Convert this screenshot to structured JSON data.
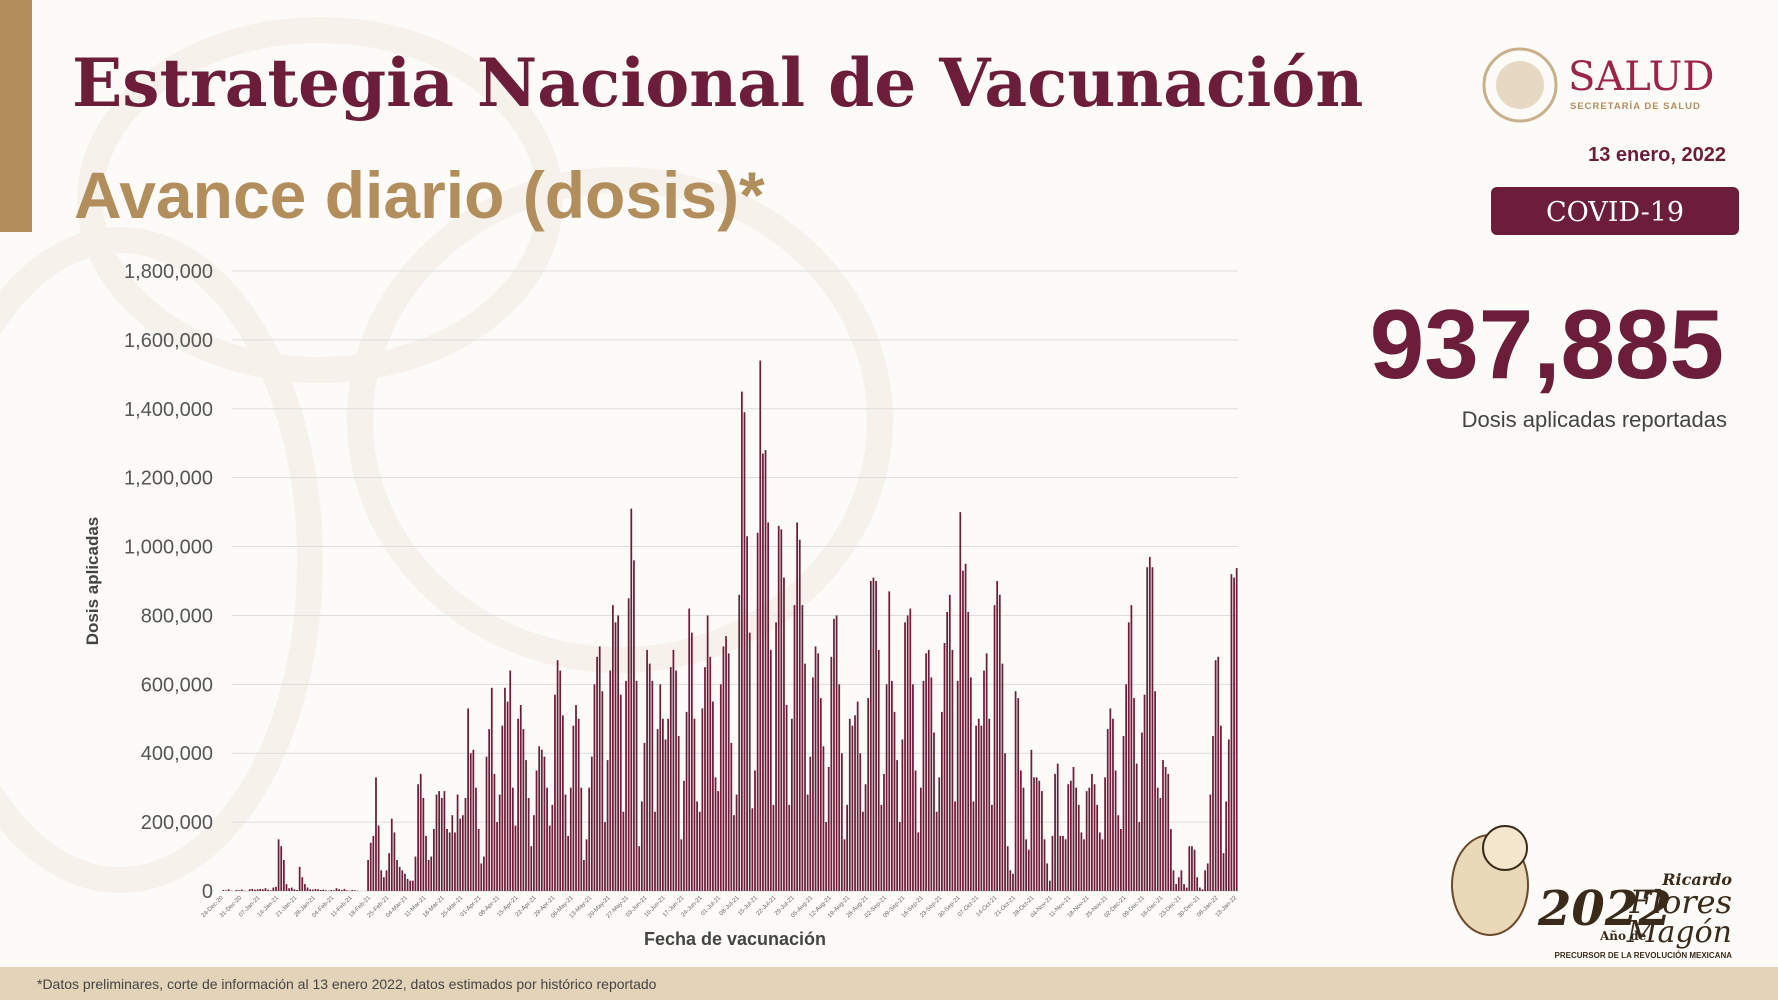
{
  "header": {
    "title": "Estrategia Nacional de Vacunación",
    "subtitle": "Avance diario (dosis)*",
    "date": "13 enero, 2022",
    "badge": "COVID-19"
  },
  "logo": {
    "agency": "SALUD",
    "agency_subtitle": "SECRETARÍA DE SALUD"
  },
  "headline": {
    "value": "937,885",
    "caption": "Dosis aplicadas reportadas"
  },
  "commemorative": {
    "year": "2022",
    "text": "Año de",
    "name_first": "Ricardo",
    "name_second": "Flores",
    "name_third": "Magón",
    "tagline": "PRECURSOR DE LA REVOLUCIÓN MEXICANA"
  },
  "footnote": "*Datos preliminares, corte de información al 13 enero 2022, datos estimados por histórico reportado",
  "chart_data": {
    "type": "bar",
    "x_label": "Fecha de vacunación",
    "y_label": "Dosis aplicadas",
    "color": "#6b1d3a",
    "grid": true,
    "ylim": [
      0,
      1800000
    ],
    "yticks": [
      0,
      {
        "value": 200000,
        "label": "200,000"
      },
      {
        "value": 400000,
        "label": "400,000"
      },
      {
        "value": 600000,
        "label": "600,000"
      },
      {
        "value": 800000,
        "label": "800,000"
      },
      {
        "value": 1000000,
        "label": "1,000,000"
      },
      {
        "value": 1200000,
        "label": "1,200,000"
      },
      {
        "value": 1400000,
        "label": "1,400,000"
      },
      {
        "value": 1600000,
        "label": "1,600,000"
      },
      {
        "value": 1800000,
        "label": "1,800,000"
      }
    ],
    "categories": [
      "24-Dec-20",
      null,
      null,
      null,
      null,
      null,
      null,
      "31-Dec-20",
      null,
      null,
      null,
      null,
      null,
      null,
      "07-Jan-21",
      null,
      null,
      null,
      null,
      null,
      null,
      "14-Jan-21",
      null,
      null,
      null,
      null,
      null,
      null,
      "21-Jan-21",
      null,
      null,
      null,
      null,
      null,
      null,
      "28-Jan-21",
      null,
      null,
      null,
      null,
      null,
      null,
      "04-Feb-21",
      null,
      null,
      null,
      null,
      null,
      null,
      "11-Feb-21",
      null,
      null,
      null,
      null,
      null,
      null,
      "18-Feb-21",
      null,
      null,
      null,
      null,
      null,
      null,
      "25-Feb-21",
      null,
      null,
      null,
      null,
      null,
      null,
      "04-Mar-21",
      null,
      null,
      null,
      null,
      null,
      null,
      "11-Mar-21",
      null,
      null,
      null,
      null,
      null,
      null,
      "18-Mar-21",
      null,
      null,
      null,
      null,
      null,
      null,
      "25-Mar-21",
      null,
      null,
      null,
      null,
      null,
      null,
      "01-Apr-21",
      null,
      null,
      null,
      null,
      null,
      null,
      "08-Apr-21",
      null,
      null,
      null,
      null,
      null,
      null,
      "15-Apr-21",
      null,
      null,
      null,
      null,
      null,
      null,
      "22-Apr-21",
      null,
      null,
      null,
      null,
      null,
      null,
      "29-Apr-21",
      null,
      null,
      null,
      null,
      null,
      null,
      "06-May-21",
      null,
      null,
      null,
      null,
      null,
      null,
      "13-May-21",
      null,
      null,
      null,
      null,
      null,
      null,
      "20-May-21",
      null,
      null,
      null,
      null,
      null,
      null,
      "27-May-21",
      null,
      null,
      null,
      null,
      null,
      null,
      "03-Jun-21",
      null,
      null,
      null,
      null,
      null,
      null,
      "10-Jun-21",
      null,
      null,
      null,
      null,
      null,
      null,
      "17-Jun-21",
      null,
      null,
      null,
      null,
      null,
      null,
      "24-Jun-21",
      null,
      null,
      null,
      null,
      null,
      null,
      "01-Jul-21",
      null,
      null,
      null,
      null,
      null,
      null,
      "08-Jul-21",
      null,
      null,
      null,
      null,
      null,
      null,
      "15-Jul-21",
      null,
      null,
      null,
      null,
      null,
      null,
      "22-Jul-21",
      null,
      null,
      null,
      null,
      null,
      null,
      "29-Jul-21",
      null,
      null,
      null,
      null,
      null,
      null,
      "05-Aug-21",
      null,
      null,
      null,
      null,
      null,
      null,
      "12-Aug-21",
      null,
      null,
      null,
      null,
      null,
      null,
      "19-Aug-21",
      null,
      null,
      null,
      null,
      null,
      null,
      "26-Aug-21",
      null,
      null,
      null,
      null,
      null,
      null,
      "02-Sep-21",
      null,
      null,
      null,
      null,
      null,
      null,
      "09-Sep-21",
      null,
      null,
      null,
      null,
      null,
      null,
      "16-Sep-21",
      null,
      null,
      null,
      null,
      null,
      null,
      "23-Sep-21",
      null,
      null,
      null,
      null,
      null,
      null,
      "30-Sep-21",
      null,
      null,
      null,
      null,
      null,
      null,
      "07-Oct-21",
      null,
      null,
      null,
      null,
      null,
      null,
      "14-Oct-21",
      null,
      null,
      null,
      null,
      null,
      null,
      "21-Oct-21",
      null,
      null,
      null,
      null,
      null,
      null,
      "28-Oct-21",
      null,
      null,
      null,
      null,
      null,
      null,
      "04-Nov-21",
      null,
      null,
      null,
      null,
      null,
      null,
      "11-Nov-21",
      null,
      null,
      null,
      null,
      null,
      null,
      "18-Nov-21",
      null,
      null,
      null,
      null,
      null,
      null,
      "25-Nov-21",
      null,
      null,
      null,
      null,
      null,
      null,
      "02-Dec-21",
      null,
      null,
      null,
      null,
      null,
      null,
      "09-Dec-21",
      null,
      null,
      null,
      null,
      null,
      null,
      "16-Dec-21",
      null,
      null,
      null,
      null,
      null,
      null,
      "23-Dec-21",
      null,
      null,
      null,
      null,
      null,
      null,
      "30-Dec-21",
      null,
      null,
      null,
      null,
      null,
      null,
      "06-Jan-22",
      null,
      null,
      null,
      null,
      null,
      null,
      "13-Jan-22"
    ],
    "values": [
      3000,
      2000,
      5000,
      1000,
      0,
      3000,
      2000,
      4000,
      1000,
      0,
      5000,
      6000,
      4000,
      5000,
      6000,
      5000,
      8000,
      4000,
      2000,
      10000,
      12000,
      150000,
      130000,
      90000,
      20000,
      8000,
      10000,
      5000,
      3000,
      70000,
      40000,
      20000,
      10000,
      5000,
      4000,
      6000,
      5000,
      3000,
      4000,
      2000,
      1000,
      3000,
      2000,
      8000,
      5000,
      3000,
      6000,
      2000,
      1000,
      3000,
      2000,
      1000,
      0,
      0,
      0,
      90000,
      140000,
      160000,
      330000,
      190000,
      60000,
      40000,
      60000,
      110000,
      210000,
      170000,
      90000,
      70000,
      60000,
      50000,
      35000,
      30000,
      30000,
      100000,
      310000,
      340000,
      270000,
      160000,
      90000,
      100000,
      180000,
      280000,
      290000,
      270000,
      290000,
      180000,
      170000,
      220000,
      170000,
      280000,
      210000,
      220000,
      270000,
      530000,
      400000,
      410000,
      300000,
      180000,
      80000,
      100000,
      390000,
      470000,
      590000,
      340000,
      200000,
      280000,
      480000,
      590000,
      550000,
      640000,
      300000,
      190000,
      500000,
      540000,
      470000,
      380000,
      270000,
      130000,
      220000,
      350000,
      420000,
      410000,
      390000,
      300000,
      190000,
      250000,
      570000,
      670000,
      640000,
      510000,
      280000,
      160000,
      300000,
      480000,
      540000,
      500000,
      300000,
      90000,
      150000,
      300000,
      390000,
      600000,
      680000,
      710000,
      580000,
      200000,
      380000,
      640000,
      830000,
      780000,
      800000,
      570000,
      230000,
      610000,
      850000,
      1110000,
      960000,
      610000,
      130000,
      260000,
      430000,
      700000,
      660000,
      610000,
      230000,
      470000,
      600000,
      500000,
      440000,
      500000,
      650000,
      700000,
      640000,
      450000,
      150000,
      320000,
      520000,
      820000,
      750000,
      500000,
      260000,
      230000,
      530000,
      650000,
      800000,
      680000,
      550000,
      330000,
      290000,
      600000,
      710000,
      740000,
      690000,
      430000,
      220000,
      280000,
      860000,
      1450000,
      1390000,
      1030000,
      750000,
      240000,
      350000,
      1040000,
      1540000,
      1270000,
      1280000,
      1070000,
      700000,
      250000,
      780000,
      1060000,
      1050000,
      910000,
      540000,
      250000,
      500000,
      830000,
      1070000,
      1020000,
      830000,
      660000,
      280000,
      390000,
      620000,
      710000,
      690000,
      560000,
      420000,
      200000,
      360000,
      680000,
      790000,
      800000,
      600000,
      400000,
      150000,
      250000,
      500000,
      480000,
      510000,
      550000,
      400000,
      230000,
      310000,
      560000,
      900000,
      910000,
      900000,
      700000,
      250000,
      340000,
      600000,
      870000,
      610000,
      520000,
      380000,
      200000,
      440000,
      780000,
      800000,
      820000,
      600000,
      350000,
      170000,
      300000,
      610000,
      690000,
      700000,
      620000,
      460000,
      230000,
      330000,
      520000,
      720000,
      810000,
      860000,
      700000,
      260000,
      610000,
      1100000,
      930000,
      950000,
      810000,
      620000,
      260000,
      480000,
      500000,
      480000,
      640000,
      690000,
      500000,
      250000,
      830000,
      900000,
      860000,
      660000,
      400000,
      130000,
      60000,
      50000,
      580000,
      560000,
      350000,
      300000,
      150000,
      120000,
      410000,
      330000,
      330000,
      320000,
      290000,
      150000,
      80000,
      30000,
      160000,
      340000,
      370000,
      160000,
      160000,
      150000,
      310000,
      320000,
      360000,
      300000,
      250000,
      170000,
      150000,
      290000,
      300000,
      340000,
      310000,
      250000,
      170000,
      150000,
      330000,
      470000,
      530000,
      500000,
      350000,
      220000,
      180000,
      450000,
      600000,
      780000,
      830000,
      560000,
      370000,
      200000,
      460000,
      570000,
      940000,
      970000,
      940000,
      580000,
      300000,
      270000,
      380000,
      360000,
      340000,
      180000,
      60000,
      20000,
      40000,
      60000,
      20000,
      10000,
      130000,
      130000,
      120000,
      40000,
      10000,
      5000,
      60000,
      80000,
      280000,
      450000,
      670000,
      680000,
      480000,
      110000,
      260000,
      440000,
      920000,
      910000,
      937885
    ]
  }
}
